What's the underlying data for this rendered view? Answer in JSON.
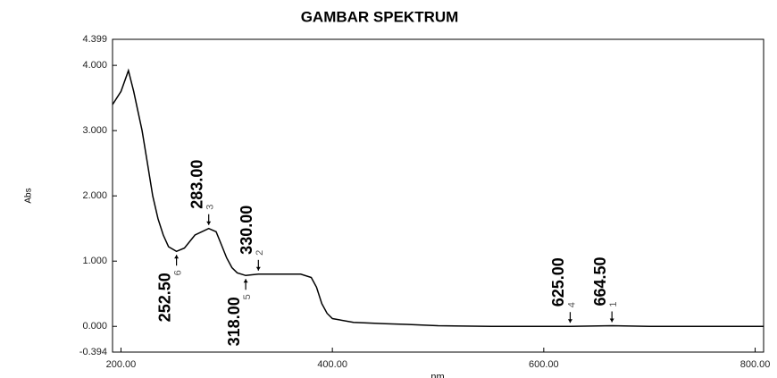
{
  "chart_data": {
    "type": "line",
    "title": "GAMBAR SPEKTRUM",
    "x_label": "nm",
    "y_label": "Abs",
    "color": "#000000",
    "xlim": [
      192,
      808
    ],
    "ylim": [
      -0.394,
      4.399
    ],
    "xticks": [
      {
        "value": 200,
        "label": "200.00"
      },
      {
        "value": 400,
        "label": "400.00"
      },
      {
        "value": 600,
        "label": "600.00"
      },
      {
        "value": 800,
        "label": "800.00"
      }
    ],
    "yticks": [
      -0.394,
      {
        "value": 0,
        "label": "0.000"
      },
      {
        "value": 1,
        "label": "1.000"
      },
      {
        "value": 2,
        "label": "2.000"
      },
      {
        "value": 3,
        "label": "3.000"
      },
      {
        "value": 4,
        "label": "4.000"
      },
      4.399
    ],
    "x": [
      192,
      200,
      207,
      212,
      216,
      220,
      225,
      230,
      235,
      240,
      245,
      252.5,
      260,
      270,
      283,
      290,
      295,
      300,
      305,
      310,
      318,
      330,
      350,
      370,
      380,
      385,
      390,
      395,
      400,
      420,
      450,
      470,
      500,
      550,
      600,
      625,
      664.5,
      700,
      800,
      808
    ],
    "values": [
      3.4,
      3.6,
      3.92,
      3.6,
      3.3,
      3.0,
      2.5,
      2.0,
      1.65,
      1.4,
      1.22,
      1.15,
      1.2,
      1.4,
      1.5,
      1.45,
      1.25,
      1.05,
      0.9,
      0.82,
      0.78,
      0.8,
      0.8,
      0.8,
      0.75,
      0.6,
      0.35,
      0.2,
      0.12,
      0.06,
      0.04,
      0.03,
      0.01,
      0.0,
      0.0,
      0.0,
      0.01,
      0.0,
      0.0,
      0.0
    ],
    "peaks": [
      {
        "number": "1",
        "label": "664.50",
        "x": 664.5,
        "y": 0.01
      },
      {
        "number": "2",
        "label": "330.00",
        "x": 330,
        "y": 0.8
      },
      {
        "number": "3",
        "label": "283.00",
        "x": 283,
        "y": 1.5
      },
      {
        "number": "4",
        "label": "625.00",
        "x": 625,
        "y": 0.0
      },
      {
        "number": "5",
        "label": "318.00",
        "x": 318,
        "y": 0.78
      },
      {
        "number": "6",
        "label": "252.50",
        "x": 252.5,
        "y": 1.15
      }
    ]
  }
}
